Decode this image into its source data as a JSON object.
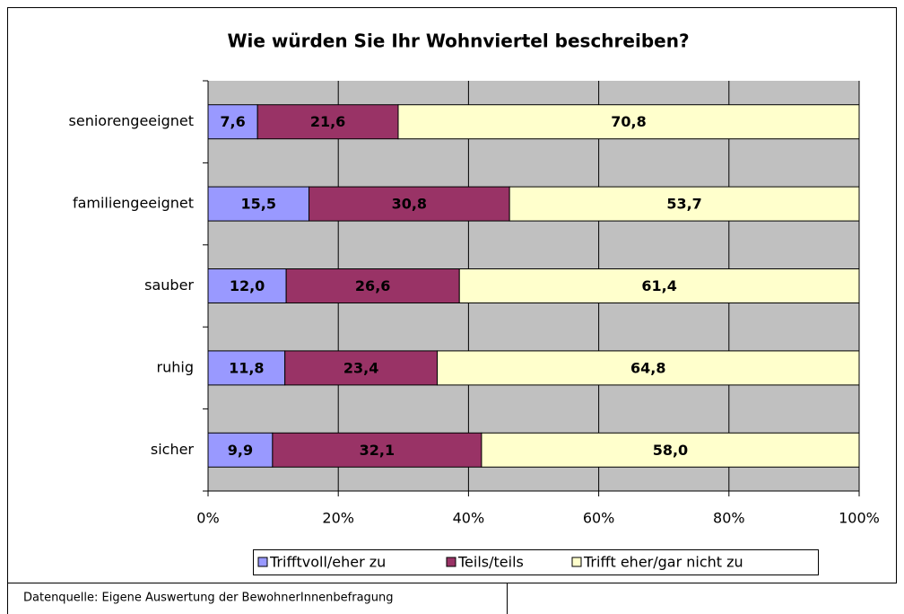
{
  "chart_data": {
    "type": "bar",
    "orientation": "horizontal",
    "stacked": true,
    "title": "Wie würden Sie Ihr Wohnviertel beschreiben?",
    "categories": [
      "seniorengeeignet",
      "familiengeeignet",
      "sauber",
      "ruhig",
      "sicher"
    ],
    "series": [
      {
        "name": "Trifftvoll/eher zu",
        "color": "#9999ff",
        "label_color": "#000000",
        "values": [
          7.6,
          15.5,
          12.0,
          11.8,
          9.9
        ],
        "value_labels": [
          "7,6",
          "15,5",
          "12,0",
          "11,8",
          "9,9"
        ]
      },
      {
        "name": "Teils/teils",
        "color": "#993366",
        "label_color": "#ffffff",
        "values": [
          21.6,
          30.8,
          26.6,
          23.4,
          32.1
        ],
        "value_labels": [
          "21,6",
          "30,8",
          "26,6",
          "23,4",
          "32,1"
        ]
      },
      {
        "name": "Trifft eher/gar nicht zu",
        "color": "#ffffcc",
        "label_color": "#000000",
        "values": [
          70.8,
          53.7,
          61.4,
          64.8,
          58.0
        ],
        "value_labels": [
          "70,8",
          "53,7",
          "61,4",
          "64,8",
          "58,0"
        ]
      }
    ],
    "xlim": [
      0,
      100
    ],
    "xticks": [
      {
        "value": 0,
        "label": "0%"
      },
      {
        "value": 20,
        "label": "20%"
      },
      {
        "value": 40,
        "label": "40%"
      },
      {
        "value": 60,
        "label": "60%"
      },
      {
        "value": 80,
        "label": "80%"
      },
      {
        "value": 100,
        "label": "100%"
      }
    ],
    "grid": true,
    "plot_background": "#c0c0c0",
    "legend": "bottom",
    "source": "Datenquelle: Eigene Auswertung der BewohnerInnenbefragung"
  }
}
